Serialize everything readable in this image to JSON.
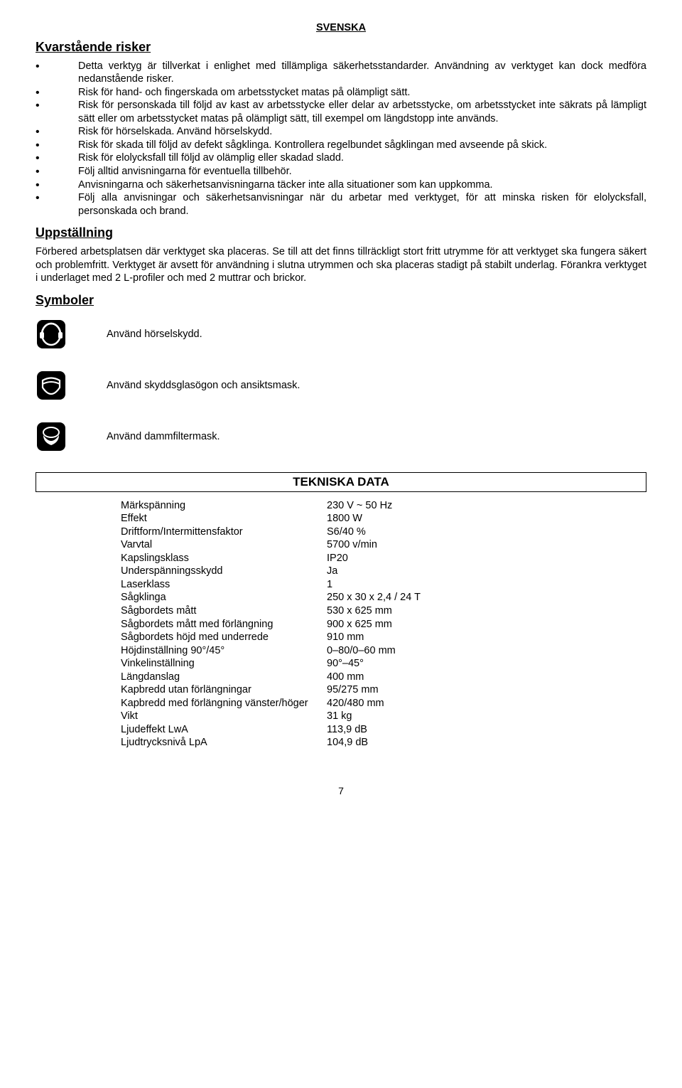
{
  "header_lang": "SVENSKA",
  "h_risks": "Kvarstående risker",
  "risks": [
    "Detta verktyg är tillverkat i enlighet med tillämpliga säkerhetsstandarder. Användning av verktyget kan dock medföra nedanstående risker.",
    "Risk för hand- och fingerskada om arbetsstycket matas på olämpligt sätt.",
    "Risk för personskada till följd av kast av arbetsstycke eller delar av arbetsstycke, om arbetsstycket inte säkrats på lämpligt sätt eller om arbetsstycket matas på olämpligt sätt, till exempel om längdstopp inte används.",
    "Risk för hörselskada. Använd hörselskydd.",
    "Risk för skada till följd av defekt sågklinga. Kontrollera regelbundet sågklingan med avseende på skick.",
    "Risk för elolycksfall till följd av olämplig eller skadad sladd.",
    "Följ alltid anvisningarna för eventuella tillbehör.",
    "Anvisningarna och säkerhetsanvisningarna täcker inte alla situationer som kan uppkomma.",
    "Följ alla anvisningar och säkerhetsanvisningar när du arbetar med verktyget, för att minska risken för elolycksfall, personskada och brand."
  ],
  "h_setup": "Uppställning",
  "setup_text": "Förbered arbetsplatsen där verktyget ska placeras. Se till att det finns tillräckligt stort fritt utrymme för att verktyget ska fungera säkert och problemfritt. Verktyget är avsett för användning i slutna utrymmen och ska placeras stadigt på stabilt underlag. Förankra verktyget i underlaget med 2 L-profiler och med 2 muttrar och brickor.",
  "h_symbols": "Symboler",
  "symbols": [
    {
      "text": "Använd hörselskydd."
    },
    {
      "text": "Använd skyddsglasögon och ansiktsmask."
    },
    {
      "text": "Använd dammfiltermask."
    }
  ],
  "tech_header": "TEKNISKA DATA",
  "tech": [
    {
      "label": "Märkspänning",
      "value": "230 V ~ 50 Hz"
    },
    {
      "label": "Effekt",
      "value": "1800 W"
    },
    {
      "label": "Driftform/Intermittensfaktor",
      "value": "S6/40 %"
    },
    {
      "label": "Varvtal",
      "value": "5700 v/min"
    },
    {
      "label": "Kapslingsklass",
      "value": "IP20"
    },
    {
      "label": "Underspänningsskydd",
      "value": "Ja"
    },
    {
      "label": "Laserklass",
      "value": "1"
    },
    {
      "label": "Sågklinga",
      "value": "250 x 30 x 2,4 / 24 T"
    },
    {
      "label": "Sågbordets mått",
      "value": "530 x 625 mm"
    },
    {
      "label": "Sågbordets mått med förlängning",
      "value": "900 x 625 mm"
    },
    {
      "label": "Sågbordets höjd med underrede",
      "value": "910 mm"
    },
    {
      "label": "Höjdinställning 90°/45°",
      "value": "0–80/0–60 mm"
    },
    {
      "label": "Vinkelinställning",
      "value": "90°–45°"
    },
    {
      "label": "Längdanslag",
      "value": "400 mm"
    },
    {
      "label": "Kapbredd utan förlängningar",
      "value": "95/275 mm"
    },
    {
      "label": "Kapbredd med förlängning vänster/höger",
      "value": "420/480 mm"
    },
    {
      "label": "Vikt",
      "value": "31 kg"
    },
    {
      "label": "Ljudeffekt LwA",
      "value": "113,9 dB"
    },
    {
      "label": "Ljudtrycksnivå LpA",
      "value": "104,9 dB"
    }
  ],
  "page_number": "7"
}
